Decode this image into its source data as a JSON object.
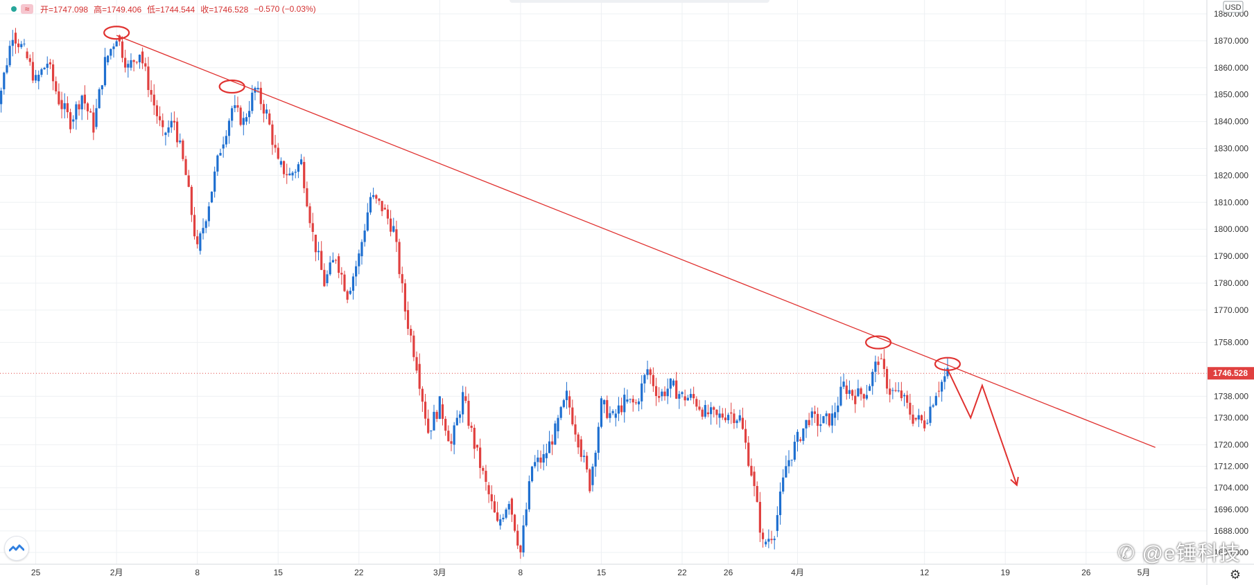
{
  "legend": {
    "open_label": "开=1747.098",
    "high_label": "高=1749.406",
    "low_label": "低=1744.544",
    "close_label": "收=1746.528",
    "change_label": "−0.570 (−0.03%)",
    "wave_icon": "≈"
  },
  "currency_label": "USD",
  "current_price_label": "1746.528",
  "watermark": "@e锤科技",
  "icons": {
    "status_dot": "status-dot-icon",
    "wave": "wave-icon",
    "logo": "tradingview-logo-icon",
    "settings": "gear-icon",
    "watermark_logo": "weibo-icon"
  },
  "colors": {
    "up": "#1e6fd0",
    "down": "#e0403f",
    "trendline": "#e0312f",
    "grid": "#eef0f3",
    "price_tag": "#e0403f",
    "status_dot": "#26a69a"
  },
  "chart_data": {
    "type": "candlestick",
    "symbol_currency": "USD",
    "ylim": [
      1673,
      1880
    ],
    "y_ticks": [
      "1880.000",
      "1870.000",
      "1860.000",
      "1850.000",
      "1840.000",
      "1830.000",
      "1820.000",
      "1810.000",
      "1800.000",
      "1790.000",
      "1780.000",
      "1770.000",
      "1758.000",
      "1738.000",
      "1730.000",
      "1720.000",
      "1712.000",
      "1704.000",
      "1696.000",
      "1688.000",
      "1680.000"
    ],
    "x_ticks": [
      "25",
      "2月",
      "8",
      "15",
      "22",
      "3月",
      "8",
      "15",
      "22",
      "26",
      "4月",
      "12",
      "19",
      "26",
      "5月"
    ],
    "current_price": 1746.528,
    "ohlc_last": {
      "open": 1747.098,
      "high": 1749.406,
      "low": 1744.544,
      "close": 1746.528,
      "change": -0.57,
      "change_pct": -0.03
    },
    "price_path": [
      [
        "Jan 21",
        1840
      ],
      [
        "Jan 22",
        1852
      ],
      [
        "Jan 23",
        1873
      ],
      [
        "Jan 24",
        1866
      ],
      [
        "Jan 25",
        1855
      ],
      [
        "Jan 26",
        1862
      ],
      [
        "Jan 27",
        1848
      ],
      [
        "Jan 28",
        1840
      ],
      [
        "Jan 29",
        1850
      ],
      [
        "Jan 30",
        1838
      ],
      [
        "Jan 31",
        1862
      ],
      [
        "Feb 1",
        1872
      ],
      [
        "Feb 2",
        1860
      ],
      [
        "Feb 3",
        1866
      ],
      [
        "Feb 4",
        1850
      ],
      [
        "Feb 5",
        1835
      ],
      [
        "Feb 6",
        1840
      ],
      [
        "Feb 7",
        1820
      ],
      [
        "Feb 8",
        1792
      ],
      [
        "Feb 9",
        1810
      ],
      [
        "Feb 10",
        1830
      ],
      [
        "Feb 11",
        1845
      ],
      [
        "Feb 12",
        1840
      ],
      [
        "Feb 13",
        1852
      ],
      [
        "Feb 14",
        1843
      ],
      [
        "Feb 15",
        1824
      ],
      [
        "Feb 16",
        1820
      ],
      [
        "Feb 17",
        1825
      ],
      [
        "Feb 18",
        1798
      ],
      [
        "Feb 19",
        1780
      ],
      [
        "Feb 20",
        1790
      ],
      [
        "Feb 21",
        1776
      ],
      [
        "Feb 22",
        1790
      ],
      [
        "Feb 23",
        1812
      ],
      [
        "Feb 24",
        1808
      ],
      [
        "Feb 25",
        1800
      ],
      [
        "Feb 26",
        1770
      ],
      [
        "Feb 27",
        1750
      ],
      [
        "Feb 28",
        1725
      ],
      [
        "Mar 1",
        1735
      ],
      [
        "Mar 2",
        1720
      ],
      [
        "Mar 3",
        1738
      ],
      [
        "Mar 4",
        1720
      ],
      [
        "Mar 5",
        1705
      ],
      [
        "Mar 6",
        1690
      ],
      [
        "Mar 7",
        1700
      ],
      [
        "Mar 8",
        1680
      ],
      [
        "Mar 9",
        1712
      ],
      [
        "Mar 10",
        1715
      ],
      [
        "Mar 11",
        1725
      ],
      [
        "Mar 12",
        1738
      ],
      [
        "Mar 13",
        1722
      ],
      [
        "Mar 14",
        1705
      ],
      [
        "Mar 15",
        1735
      ],
      [
        "Mar 16",
        1730
      ],
      [
        "Mar 17",
        1736
      ],
      [
        "Mar 18",
        1735
      ],
      [
        "Mar 19",
        1748
      ],
      [
        "Mar 20",
        1738
      ],
      [
        "Mar 21",
        1742
      ],
      [
        "Mar 22",
        1738
      ],
      [
        "Mar 23",
        1737
      ],
      [
        "Mar 24",
        1732
      ],
      [
        "Mar 25",
        1730
      ],
      [
        "Mar 26",
        1732
      ],
      [
        "Mar 27",
        1730
      ],
      [
        "Mar 28",
        1710
      ],
      [
        "Mar 29",
        1683
      ],
      [
        "Mar 30",
        1688
      ],
      [
        "Mar 31",
        1712
      ],
      [
        "Apr 1",
        1722
      ],
      [
        "Apr 2",
        1730
      ],
      [
        "Apr 3",
        1728
      ],
      [
        "Apr 4",
        1730
      ],
      [
        "Apr 5",
        1742
      ],
      [
        "Apr 6",
        1738
      ],
      [
        "Apr 7",
        1740
      ],
      [
        "Apr 8",
        1752
      ],
      [
        "Apr 9",
        1740
      ],
      [
        "Apr 10",
        1738
      ],
      [
        "Apr 11",
        1730
      ],
      [
        "Apr 12",
        1728
      ],
      [
        "Apr 13",
        1740
      ],
      [
        "Apr 14",
        1746.528
      ]
    ],
    "trendline": {
      "from": [
        "Feb 1",
        1872
      ],
      "to": [
        "May 2",
        1719
      ]
    },
    "annotations": [
      {
        "type": "ellipse",
        "at": [
          "Feb 1",
          1873
        ]
      },
      {
        "type": "ellipse",
        "at": [
          "Feb 11",
          1853
        ]
      },
      {
        "type": "ellipse",
        "at": [
          "Apr 8",
          1758
        ]
      },
      {
        "type": "ellipse",
        "at": [
          "Apr 14",
          1750
        ]
      },
      {
        "type": "arrow",
        "points": [
          [
            "Apr 14",
            1748
          ],
          [
            "Apr 16",
            1730
          ],
          [
            "Apr 17",
            1742
          ],
          [
            "Apr 20",
            1705
          ]
        ]
      }
    ]
  }
}
